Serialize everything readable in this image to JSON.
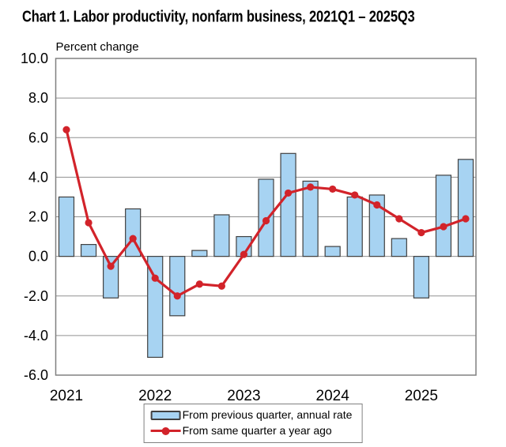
{
  "title": "Chart 1. Labor productivity, nonfarm business, 2021Q1 – 2025Q3",
  "legend": {
    "items": [
      {
        "label": "From previous quarter, annual rate",
        "marker": "bar-swatch"
      },
      {
        "label": "From same quarter a year ago",
        "marker": "line-swatch"
      }
    ]
  },
  "colors": {
    "bar_fill": "#a7d3f2",
    "bar_border": "#404040",
    "line": "#d2232a",
    "gridline": "#909090",
    "plot_border": "#808080",
    "text": "#000000"
  },
  "chart_data": {
    "type": "bar",
    "subtype": "bar and line combo",
    "title": "Chart 1. Labor productivity, nonfarm business, 2021Q1 – 2025Q3",
    "ylabel": "Percent change",
    "ylim": [
      -6,
      10
    ],
    "ytick_step": 2,
    "grid": "horizontal gridlines on",
    "legend_position": "bottom center",
    "x": [
      "2021Q1",
      "2021Q2",
      "2021Q3",
      "2021Q4",
      "2022Q1",
      "2022Q2",
      "2022Q3",
      "2022Q4",
      "2023Q1",
      "2023Q2",
      "2023Q3",
      "2023Q4",
      "2024Q1",
      "2024Q2",
      "2024Q3",
      "2024Q4",
      "2025Q1",
      "2025Q2",
      "2025Q3"
    ],
    "x_tick_labels": [
      "2021",
      "2022",
      "2023",
      "2024",
      "2025"
    ],
    "series": [
      {
        "name": "From previous quarter, annual rate",
        "type": "bar",
        "values": [
          3.0,
          0.6,
          -2.1,
          2.4,
          -5.1,
          -3.0,
          0.3,
          2.1,
          1.0,
          3.9,
          5.2,
          3.8,
          0.5,
          3.0,
          3.1,
          0.9,
          -2.1,
          4.1,
          4.9
        ]
      },
      {
        "name": "From same quarter a year ago",
        "type": "line",
        "values": [
          6.4,
          1.7,
          -0.5,
          0.9,
          -1.1,
          -2.0,
          -1.4,
          -1.5,
          0.1,
          1.8,
          3.2,
          3.5,
          3.4,
          3.1,
          2.6,
          1.9,
          1.2,
          1.5,
          1.9
        ]
      }
    ]
  }
}
